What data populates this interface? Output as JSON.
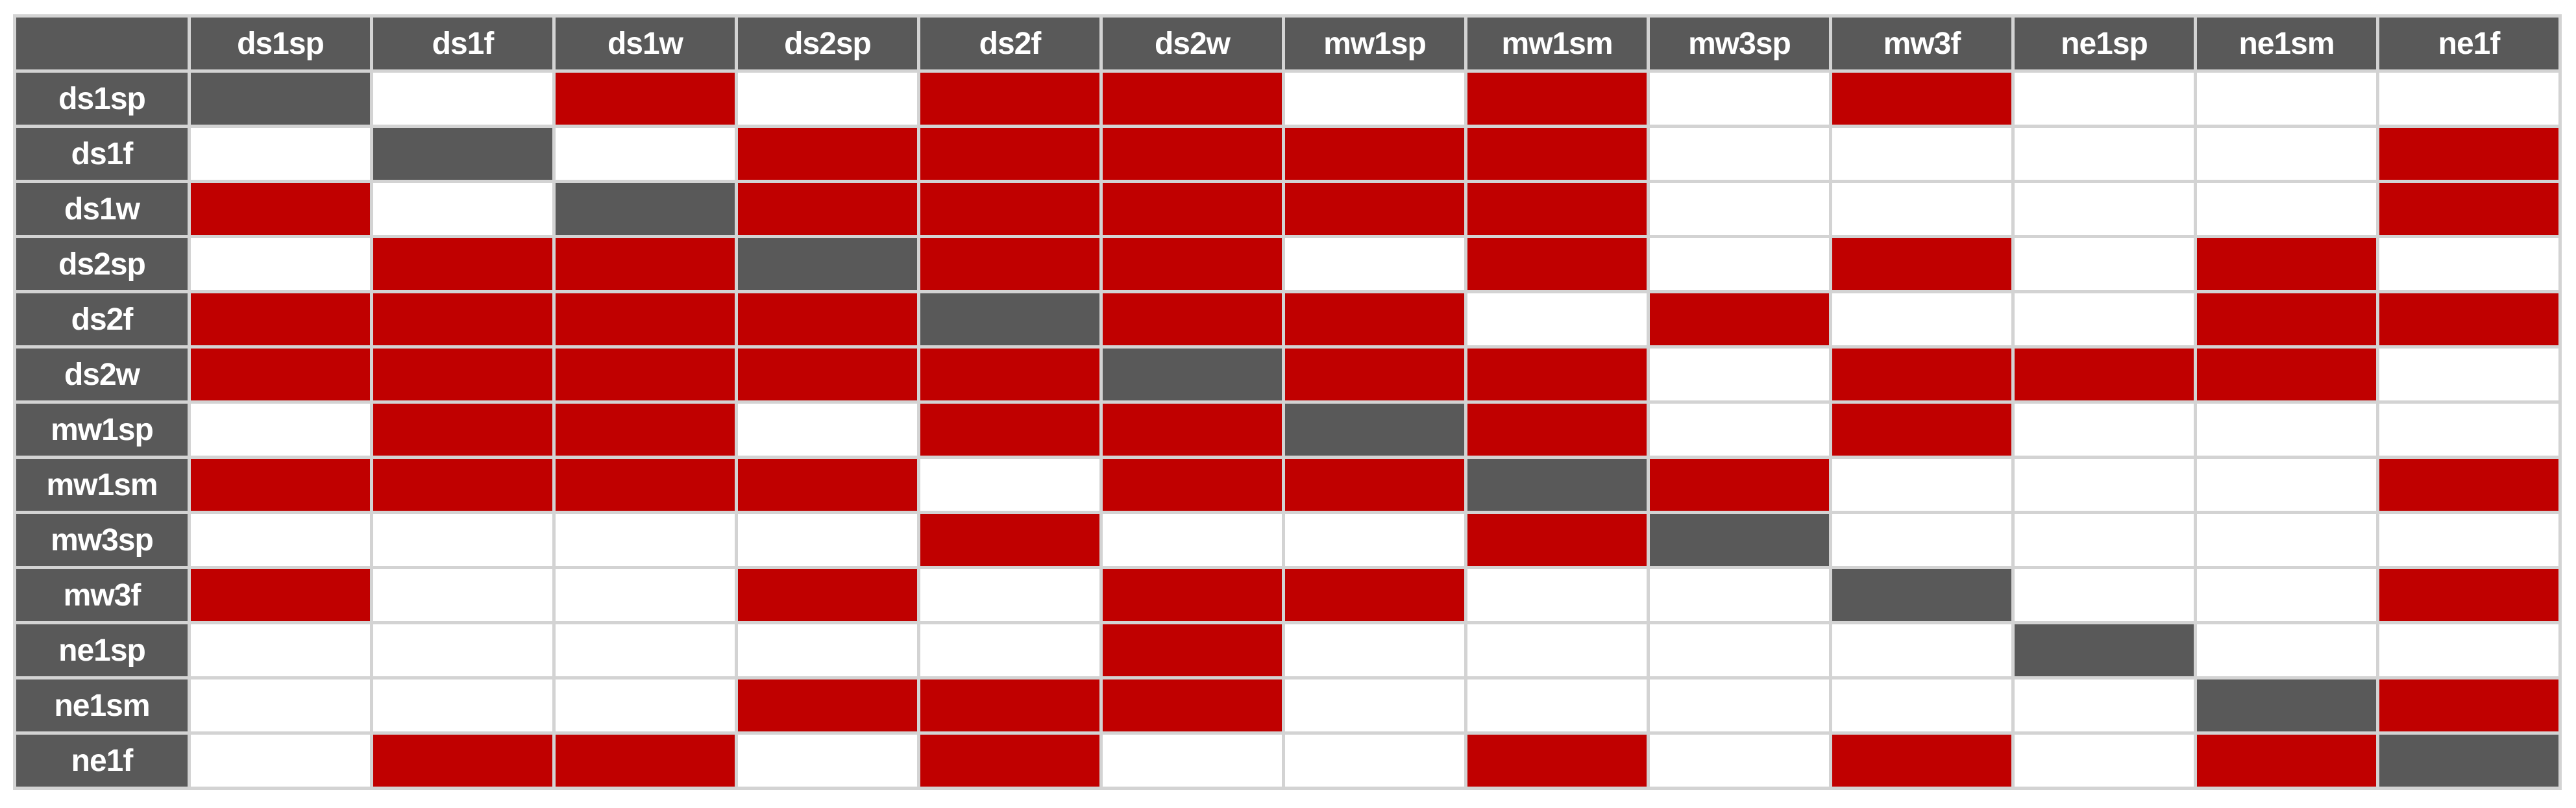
{
  "corner_label": "",
  "chart_data": {
    "type": "heatmap",
    "title": "",
    "legend": "none",
    "grid": true,
    "x_categories": [
      "ds1sp",
      "ds1f",
      "ds1w",
      "ds2sp",
      "ds2f",
      "ds2w",
      "mw1sp",
      "mw1sm",
      "mw3sp",
      "mw3f",
      "ne1sp",
      "ne1sm",
      "ne1f"
    ],
    "y_categories": [
      "ds1sp",
      "ds1f",
      "ds1w",
      "ds2sp",
      "ds2f",
      "ds2w",
      "mw1sp",
      "mw1sm",
      "mw3sp",
      "mw3f",
      "ne1sp",
      "ne1sm",
      "ne1f"
    ],
    "cell_encoding": {
      "1": "filled red cell",
      "0": "empty white cell",
      "self": "dark gray diagonal self-pair cell"
    },
    "values": [
      [
        "self",
        0,
        1,
        0,
        1,
        1,
        0,
        1,
        0,
        1,
        0,
        0,
        0
      ],
      [
        0,
        "self",
        0,
        1,
        1,
        1,
        1,
        1,
        0,
        0,
        0,
        0,
        1
      ],
      [
        1,
        0,
        "self",
        1,
        1,
        1,
        1,
        1,
        0,
        0,
        0,
        0,
        1
      ],
      [
        0,
        1,
        1,
        "self",
        1,
        1,
        0,
        1,
        0,
        1,
        0,
        1,
        0
      ],
      [
        1,
        1,
        1,
        1,
        "self",
        1,
        1,
        0,
        1,
        0,
        0,
        1,
        1
      ],
      [
        1,
        1,
        1,
        1,
        1,
        "self",
        1,
        1,
        0,
        1,
        1,
        1,
        0
      ],
      [
        0,
        1,
        1,
        0,
        1,
        1,
        "self",
        1,
        0,
        1,
        0,
        0,
        0
      ],
      [
        1,
        1,
        1,
        1,
        0,
        1,
        1,
        "self",
        1,
        0,
        0,
        0,
        1
      ],
      [
        0,
        0,
        0,
        0,
        1,
        0,
        0,
        1,
        "self",
        0,
        0,
        0,
        0
      ],
      [
        1,
        0,
        0,
        1,
        0,
        1,
        1,
        0,
        0,
        "self",
        0,
        0,
        1
      ],
      [
        0,
        0,
        0,
        0,
        0,
        1,
        0,
        0,
        0,
        0,
        "self",
        0,
        0
      ],
      [
        0,
        0,
        0,
        1,
        1,
        1,
        0,
        0,
        0,
        0,
        0,
        "self",
        1
      ],
      [
        0,
        1,
        1,
        0,
        1,
        0,
        0,
        1,
        0,
        1,
        0,
        1,
        "self"
      ]
    ],
    "colors": {
      "filled": "#c00000",
      "empty": "#ffffff",
      "diagonal": "#595959",
      "header_bg": "#595959",
      "header_text": "#ffffff",
      "grid_lines": "#d3d3d3",
      "page_background": "#ffffff"
    }
  }
}
